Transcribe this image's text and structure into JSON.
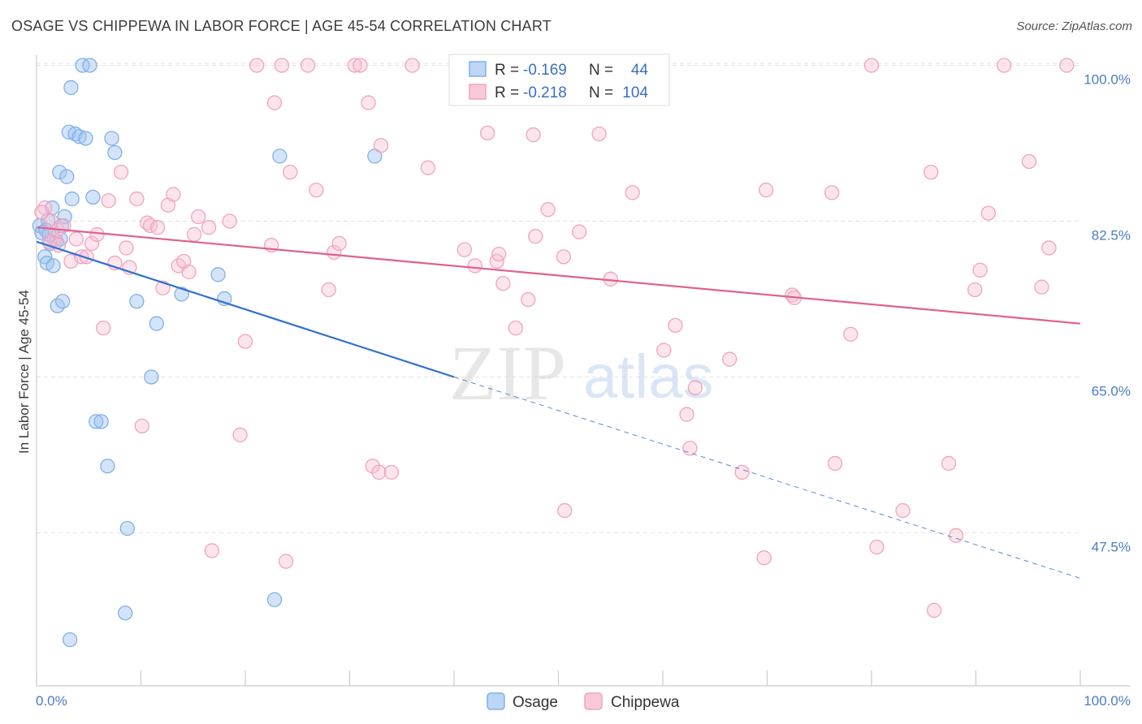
{
  "header": {
    "title": "OSAGE VS CHIPPEWA IN LABOR FORCE | AGE 45-54 CORRELATION CHART",
    "source": "Source: ZipAtlas.com"
  },
  "watermark": {
    "zip": "ZIP",
    "atlas": "atlas"
  },
  "chart_data": {
    "type": "scatter",
    "title": "OSAGE VS CHIPPEWA IN LABOR FORCE | AGE 45-54 CORRELATION CHART",
    "ylabel": "In Labor Force | Age 45-54",
    "xlim": [
      0,
      100
    ],
    "ylim": [
      30,
      102
    ],
    "x_tick_labels": [
      "0.0%",
      "100.0%"
    ],
    "y_ticks": [
      47.5,
      65.0,
      82.5,
      100.0
    ],
    "y_tick_labels": [
      "47.5%",
      "65.0%",
      "82.5%",
      "100.0%"
    ],
    "grid": true,
    "legend_position": "top-center",
    "series": [
      {
        "name": "Osage",
        "color": "#7fb0ea",
        "line_color": "#2f6fd0",
        "stats": {
          "r_label": "R =",
          "r_value": "-0.169",
          "n_label": "N =",
          "n_value": "44"
        },
        "trend": {
          "x0": 0,
          "y0": 80.2,
          "x1": 40,
          "y1": 65.0,
          "dash_x1": 100,
          "dash_y1": 42.4
        },
        "points": [
          [
            0.3,
            82.0
          ],
          [
            0.5,
            81.2
          ],
          [
            0.8,
            78.5
          ],
          [
            1.0,
            77.8
          ],
          [
            1.2,
            81.0
          ],
          [
            1.3,
            80.0
          ],
          [
            1.5,
            84.0
          ],
          [
            1.6,
            77.5
          ],
          [
            1.9,
            80.2
          ],
          [
            2.0,
            73.0
          ],
          [
            2.2,
            88.0
          ],
          [
            2.3,
            80.5
          ],
          [
            2.5,
            73.5
          ],
          [
            2.7,
            83.0
          ],
          [
            2.9,
            87.5
          ],
          [
            3.1,
            92.5
          ],
          [
            3.3,
            97.5
          ],
          [
            3.4,
            85.0
          ],
          [
            3.7,
            92.3
          ],
          [
            4.1,
            92.0
          ],
          [
            4.4,
            100.0
          ],
          [
            4.7,
            91.8
          ],
          [
            5.1,
            100.0
          ],
          [
            5.4,
            85.2
          ],
          [
            5.7,
            60.0
          ],
          [
            6.2,
            60.0
          ],
          [
            6.8,
            55.0
          ],
          [
            7.2,
            91.8
          ],
          [
            7.5,
            90.2
          ],
          [
            8.7,
            48.0
          ],
          [
            8.5,
            38.5
          ],
          [
            9.6,
            73.5
          ],
          [
            11.0,
            65.0
          ],
          [
            11.5,
            71.0
          ],
          [
            13.9,
            74.3
          ],
          [
            17.4,
            76.5
          ],
          [
            18.0,
            73.8
          ],
          [
            22.8,
            40.0
          ],
          [
            23.3,
            89.8
          ],
          [
            32.4,
            89.8
          ],
          [
            3.2,
            35.5
          ],
          [
            1.1,
            82.6
          ],
          [
            2.4,
            82.0
          ],
          [
            0.9,
            81.5
          ]
        ]
      },
      {
        "name": "Chippewa",
        "color": "#f2a3bd",
        "line_color": "#e0608c",
        "stats": {
          "r_label": "R =",
          "r_value": "-0.218",
          "n_label": "N =",
          "n_value": "104"
        },
        "trend": {
          "x0": 0,
          "y0": 81.8,
          "x1": 100,
          "y1": 71.0
        },
        "points": [
          [
            0.8,
            84.0
          ],
          [
            1.4,
            82.5
          ],
          [
            1.7,
            80.5
          ],
          [
            2.0,
            81.5
          ],
          [
            2.6,
            82.0
          ],
          [
            3.3,
            78.0
          ],
          [
            3.8,
            80.5
          ],
          [
            4.3,
            78.5
          ],
          [
            4.8,
            78.5
          ],
          [
            5.3,
            80.0
          ],
          [
            5.8,
            81.0
          ],
          [
            6.4,
            70.5
          ],
          [
            6.9,
            84.8
          ],
          [
            7.5,
            77.8
          ],
          [
            8.1,
            88.0
          ],
          [
            8.6,
            79.5
          ],
          [
            8.9,
            77.3
          ],
          [
            9.6,
            85.0
          ],
          [
            10.1,
            59.5
          ],
          [
            10.6,
            82.3
          ],
          [
            10.9,
            82.0
          ],
          [
            11.6,
            81.8
          ],
          [
            12.1,
            75.0
          ],
          [
            12.6,
            84.3
          ],
          [
            13.1,
            85.5
          ],
          [
            13.6,
            77.5
          ],
          [
            14.1,
            78.0
          ],
          [
            14.6,
            76.8
          ],
          [
            15.1,
            81.0
          ],
          [
            15.5,
            83.0
          ],
          [
            16.5,
            81.8
          ],
          [
            16.8,
            45.5
          ],
          [
            18.5,
            82.5
          ],
          [
            19.5,
            58.5
          ],
          [
            20.0,
            69.0
          ],
          [
            21.1,
            100.0
          ],
          [
            22.5,
            79.8
          ],
          [
            22.8,
            95.8
          ],
          [
            23.5,
            100.0
          ],
          [
            23.9,
            44.3
          ],
          [
            24.3,
            88.0
          ],
          [
            26.0,
            100.0
          ],
          [
            26.8,
            86.0
          ],
          [
            28.0,
            74.8
          ],
          [
            28.5,
            79.0
          ],
          [
            29.0,
            80.0
          ],
          [
            30.5,
            100.0
          ],
          [
            31.0,
            100.0
          ],
          [
            31.8,
            95.8
          ],
          [
            32.2,
            55.0
          ],
          [
            32.8,
            54.3
          ],
          [
            33.0,
            91.0
          ],
          [
            34.0,
            54.3
          ],
          [
            36.0,
            100.0
          ],
          [
            37.5,
            88.5
          ],
          [
            41.0,
            79.3
          ],
          [
            42.0,
            77.5
          ],
          [
            43.2,
            92.4
          ],
          [
            44.1,
            78.0
          ],
          [
            44.3,
            78.8
          ],
          [
            44.7,
            75.5
          ],
          [
            45.9,
            70.5
          ],
          [
            47.1,
            73.7
          ],
          [
            47.6,
            92.2
          ],
          [
            47.8,
            80.8
          ],
          [
            49.0,
            83.8
          ],
          [
            50.5,
            78.5
          ],
          [
            50.6,
            50.0
          ],
          [
            52.0,
            81.3
          ],
          [
            53.9,
            92.3
          ],
          [
            55.0,
            76.0
          ],
          [
            57.1,
            85.7
          ],
          [
            60.1,
            68.0
          ],
          [
            61.2,
            70.8
          ],
          [
            62.3,
            60.8
          ],
          [
            62.6,
            57.0
          ],
          [
            63.1,
            63.8
          ],
          [
            66.4,
            67.0
          ],
          [
            67.6,
            54.3
          ],
          [
            69.7,
            44.7
          ],
          [
            69.9,
            86.0
          ],
          [
            72.4,
            74.2
          ],
          [
            72.6,
            73.9
          ],
          [
            76.2,
            85.7
          ],
          [
            76.5,
            55.3
          ],
          [
            78.0,
            69.8
          ],
          [
            80.0,
            100.0
          ],
          [
            80.5,
            45.9
          ],
          [
            83.0,
            50.0
          ],
          [
            85.7,
            88.0
          ],
          [
            86.0,
            38.8
          ],
          [
            87.4,
            55.3
          ],
          [
            88.1,
            47.2
          ],
          [
            89.9,
            74.8
          ],
          [
            90.4,
            77.0
          ],
          [
            91.2,
            83.4
          ],
          [
            92.7,
            100.0
          ],
          [
            95.1,
            89.2
          ],
          [
            96.3,
            75.1
          ],
          [
            97.0,
            79.5
          ],
          [
            98.7,
            100.0
          ],
          [
            0.5,
            83.5
          ],
          [
            1.2,
            80.2
          ],
          [
            2.1,
            79.8
          ]
        ]
      }
    ]
  }
}
